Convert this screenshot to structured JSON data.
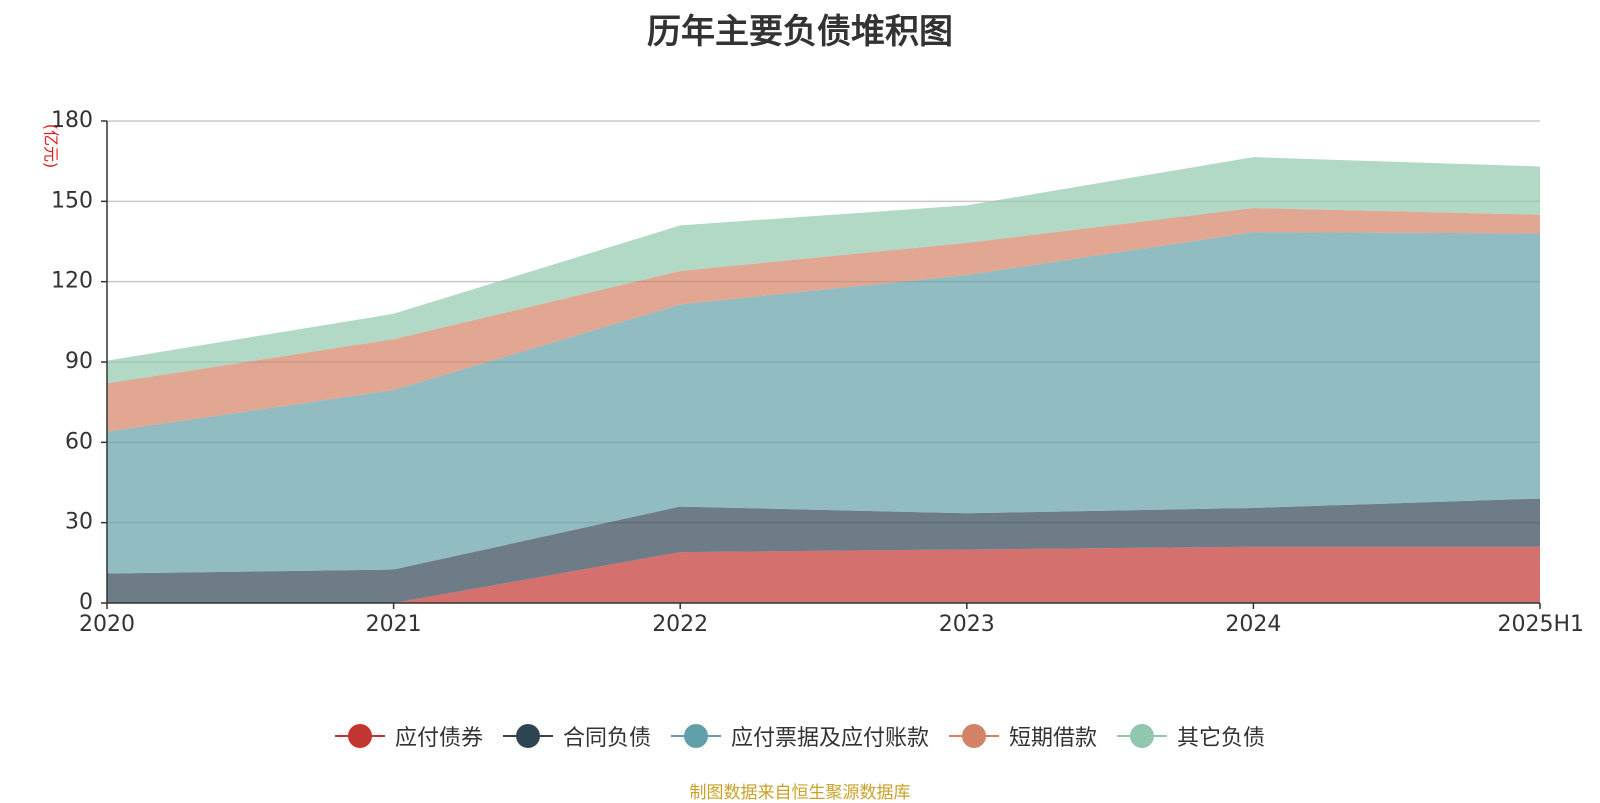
{
  "chart_data": {
    "type": "area",
    "stacked": true,
    "title": "历年主要负债堆积图",
    "ylabel": "(亿元)",
    "xlabel": "",
    "categories": [
      "2020",
      "2021",
      "2022",
      "2023",
      "2024",
      "2025H1"
    ],
    "ylim": [
      0,
      180
    ],
    "yticks": [
      0,
      30,
      60,
      90,
      120,
      150,
      180
    ],
    "grid": true,
    "legend_position": "bottom",
    "series": [
      {
        "name": "应付债券",
        "color": "#c23531",
        "values": [
          0,
          0,
          19,
          20,
          21,
          21
        ]
      },
      {
        "name": "合同负债",
        "color": "#2f4554",
        "values": [
          11,
          12.5,
          17,
          13.5,
          14.5,
          18
        ]
      },
      {
        "name": "应付票据及应付账款",
        "color": "#61a0a8",
        "values": [
          53,
          67,
          75.5,
          89,
          103,
          99
        ]
      },
      {
        "name": "短期借款",
        "color": "#d48265",
        "values": [
          18,
          19,
          12.5,
          12,
          9,
          7
        ]
      },
      {
        "name": "其它负债",
        "color": "#91c7ae",
        "values": [
          8.5,
          9.5,
          17,
          14,
          19,
          18
        ]
      }
    ]
  },
  "source_note": "制图数据来自恒生聚源数据库"
}
